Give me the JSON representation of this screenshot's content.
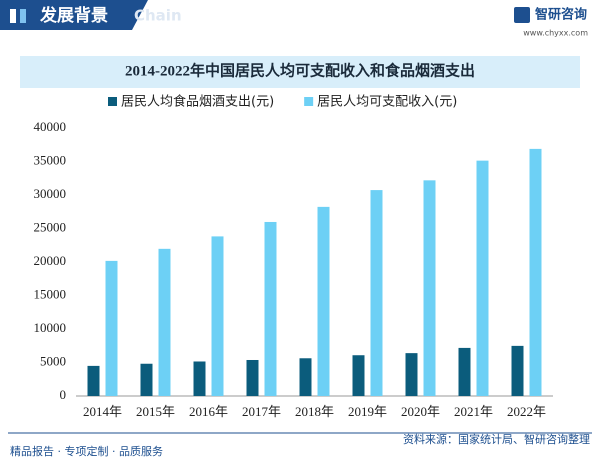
{
  "header": {
    "section": "发展背景",
    "watermark": "Chain",
    "brand": "智研咨询",
    "url": "www.chyxx.com"
  },
  "chart_data": {
    "type": "bar",
    "title": "2014-2022年中国居民人均可支配收入和食品烟酒支出",
    "categories": [
      "2014年",
      "2015年",
      "2016年",
      "2017年",
      "2018年",
      "2019年",
      "2020年",
      "2021年",
      "2022年"
    ],
    "series": [
      {
        "name": "居民人均食品烟酒支出(元)",
        "color": "#0b5c7c",
        "values": [
          4494,
          4814,
          5151,
          5374,
          5631,
          6084,
          6397,
          7178,
          7481
        ]
      },
      {
        "name": "居民人均可支配收入(元)",
        "color": "#6dd0f5",
        "values": [
          20167,
          21966,
          23821,
          25974,
          28228,
          30733,
          32189,
          35128,
          36883
        ]
      }
    ],
    "ylim": [
      0,
      40000
    ],
    "yticks": [
      0,
      5000,
      10000,
      15000,
      20000,
      25000,
      30000,
      35000,
      40000
    ],
    "grid": false,
    "legend": "top"
  },
  "footer": {
    "slogan": "精品报告 · 专项定制 · 品质服务",
    "source": "资料来源：国家统计局、智研咨询整理"
  }
}
